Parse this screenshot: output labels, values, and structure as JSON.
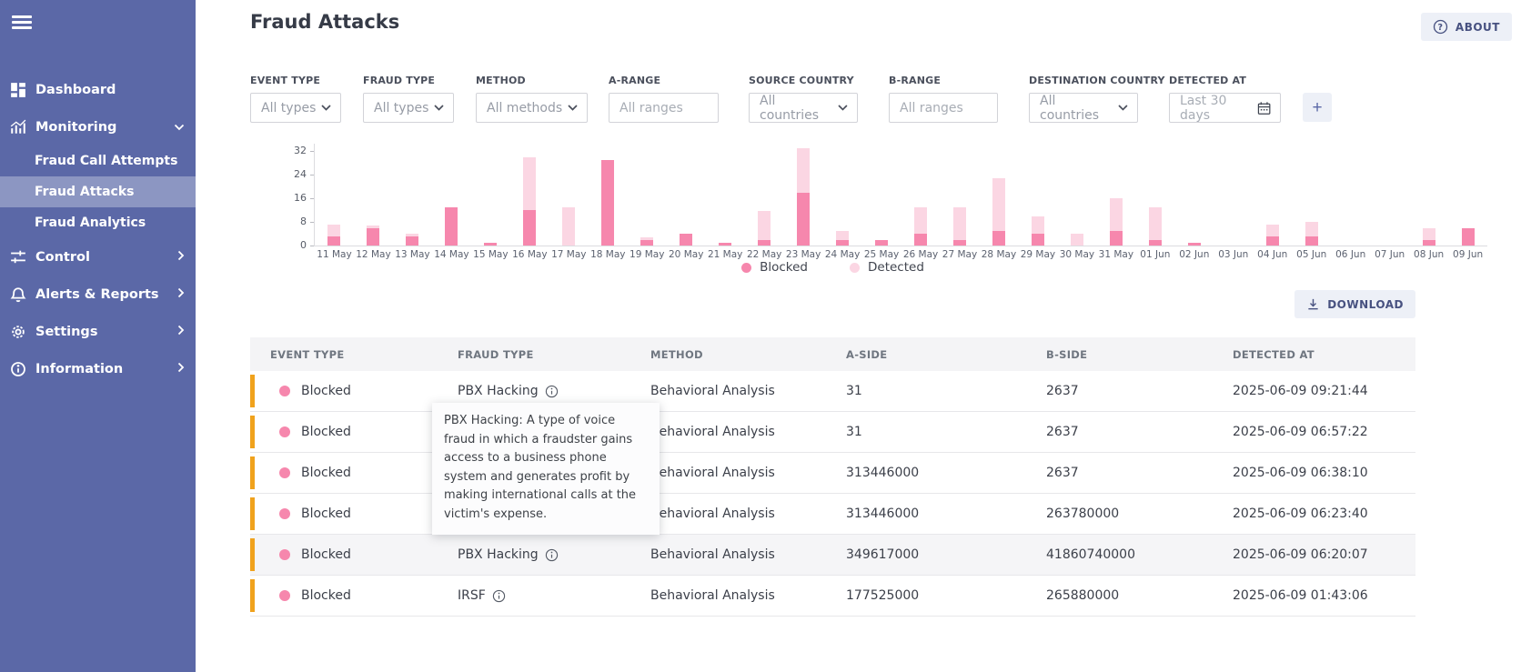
{
  "sidebar": {
    "items": [
      {
        "label": "Dashboard",
        "icon": "dashboard-icon"
      },
      {
        "label": "Monitoring",
        "icon": "monitoring-icon",
        "chevron": "down",
        "children": [
          {
            "label": "Fraud Call Attempts",
            "selected": false
          },
          {
            "label": "Fraud Attacks",
            "selected": true
          },
          {
            "label": "Fraud Analytics",
            "selected": false
          }
        ]
      },
      {
        "label": "Control",
        "icon": "control-icon",
        "chevron": "right"
      },
      {
        "label": "Alerts & Reports",
        "icon": "bell-icon",
        "chevron": "right"
      },
      {
        "label": "Settings",
        "icon": "gear-icon",
        "chevron": "right"
      },
      {
        "label": "Information",
        "icon": "info-icon",
        "chevron": "right"
      }
    ]
  },
  "header": {
    "title": "Fraud Attacks",
    "about_label": "ABOUT"
  },
  "filters": {
    "fields": [
      {
        "label": "EVENT TYPE",
        "type": "select",
        "value": "All types"
      },
      {
        "label": "FRAUD TYPE",
        "type": "select",
        "value": "All types"
      },
      {
        "label": "METHOD",
        "type": "select",
        "value": "All methods"
      },
      {
        "label": "A-RANGE",
        "type": "text",
        "placeholder": "All ranges"
      },
      {
        "label": "SOURCE COUNTRY",
        "type": "select",
        "value": "All countries"
      },
      {
        "label": "B-RANGE",
        "type": "text",
        "placeholder": "All ranges"
      },
      {
        "label": "DESTINATION COUNTRY",
        "type": "select",
        "value": "All countries"
      },
      {
        "label": "DETECTED AT",
        "type": "date",
        "value": "Last 30 days"
      }
    ],
    "add_button_label": "+"
  },
  "chart_data": {
    "type": "bar",
    "stacked": true,
    "categories": [
      "11 May",
      "12 May",
      "13 May",
      "14 May",
      "15 May",
      "16 May",
      "17 May",
      "18 May",
      "19 May",
      "20 May",
      "21 May",
      "22 May",
      "23 May",
      "24 May",
      "25 May",
      "26 May",
      "27 May",
      "28 May",
      "29 May",
      "30 May",
      "31 May",
      "01 Jun",
      "02 Jun",
      "03 Jun",
      "04 Jun",
      "05 Jun",
      "06 Jun",
      "07 Jun",
      "08 Jun",
      "09 Jun"
    ],
    "series": [
      {
        "name": "Blocked",
        "color": "#f687ad",
        "values": [
          3,
          6,
          3,
          13,
          1,
          12,
          0,
          29,
          2,
          4,
          1,
          2,
          18,
          2,
          2,
          4,
          2,
          5,
          4,
          0,
          5,
          2,
          1,
          0,
          3,
          3,
          0,
          0,
          2,
          6
        ]
      },
      {
        "name": "Detected",
        "color": "#fbd6e3",
        "values": [
          4,
          1,
          1,
          0,
          0,
          18,
          13,
          0,
          1,
          0,
          0,
          10,
          15,
          3,
          0,
          9,
          11,
          18,
          6,
          4,
          11,
          11,
          0,
          0,
          4,
          5,
          0,
          0,
          4,
          0
        ]
      }
    ],
    "title": "",
    "xlabel": "",
    "ylabel": "",
    "yticks": [
      0,
      8,
      16,
      24,
      32
    ],
    "ylim": [
      0,
      34.5
    ],
    "grid": false,
    "legend_position": "bottom"
  },
  "download_label": "DOWNLOAD",
  "table": {
    "columns": [
      "EVENT TYPE",
      "FRAUD TYPE",
      "METHOD",
      "A-SIDE",
      "B-SIDE",
      "DETECTED AT"
    ],
    "rows": [
      {
        "event_type": "Blocked",
        "fraud_type": "PBX Hacking",
        "method": "Behavioral Analysis",
        "a_side": "31",
        "b_side": "2637",
        "detected_at": "2025-06-09 09:21:44"
      },
      {
        "event_type": "Blocked",
        "fraud_type": "",
        "method": "Behavioral Analysis",
        "a_side": "31",
        "b_side": "2637",
        "detected_at": "2025-06-09 06:57:22"
      },
      {
        "event_type": "Blocked",
        "fraud_type": "",
        "method": "Behavioral Analysis",
        "a_side": "313446000",
        "b_side": "2637",
        "detected_at": "2025-06-09 06:38:10"
      },
      {
        "event_type": "Blocked",
        "fraud_type": "",
        "method": "Behavioral Analysis",
        "a_side": "313446000",
        "b_side": "263780000",
        "detected_at": "2025-06-09 06:23:40"
      },
      {
        "event_type": "Blocked",
        "fraud_type": "PBX Hacking",
        "method": "Behavioral Analysis",
        "a_side": "349617000",
        "b_side": "41860740000",
        "detected_at": "2025-06-09 06:20:07"
      },
      {
        "event_type": "Blocked",
        "fraud_type": "IRSF",
        "method": "Behavioral Analysis",
        "a_side": "177525000",
        "b_side": "265880000",
        "detected_at": "2025-06-09 01:43:06"
      }
    ]
  },
  "tooltip": {
    "text": "PBX Hacking: A type of voice fraud in which a fraudster gains access to a business phone system and generates profit by making international calls at the victim's expense."
  },
  "colors": {
    "sidebar": "#5b68a7",
    "accent_orange": "#f0a21d",
    "blocked_pink": "#f687ad",
    "detected_pink": "#fbd6e3"
  }
}
